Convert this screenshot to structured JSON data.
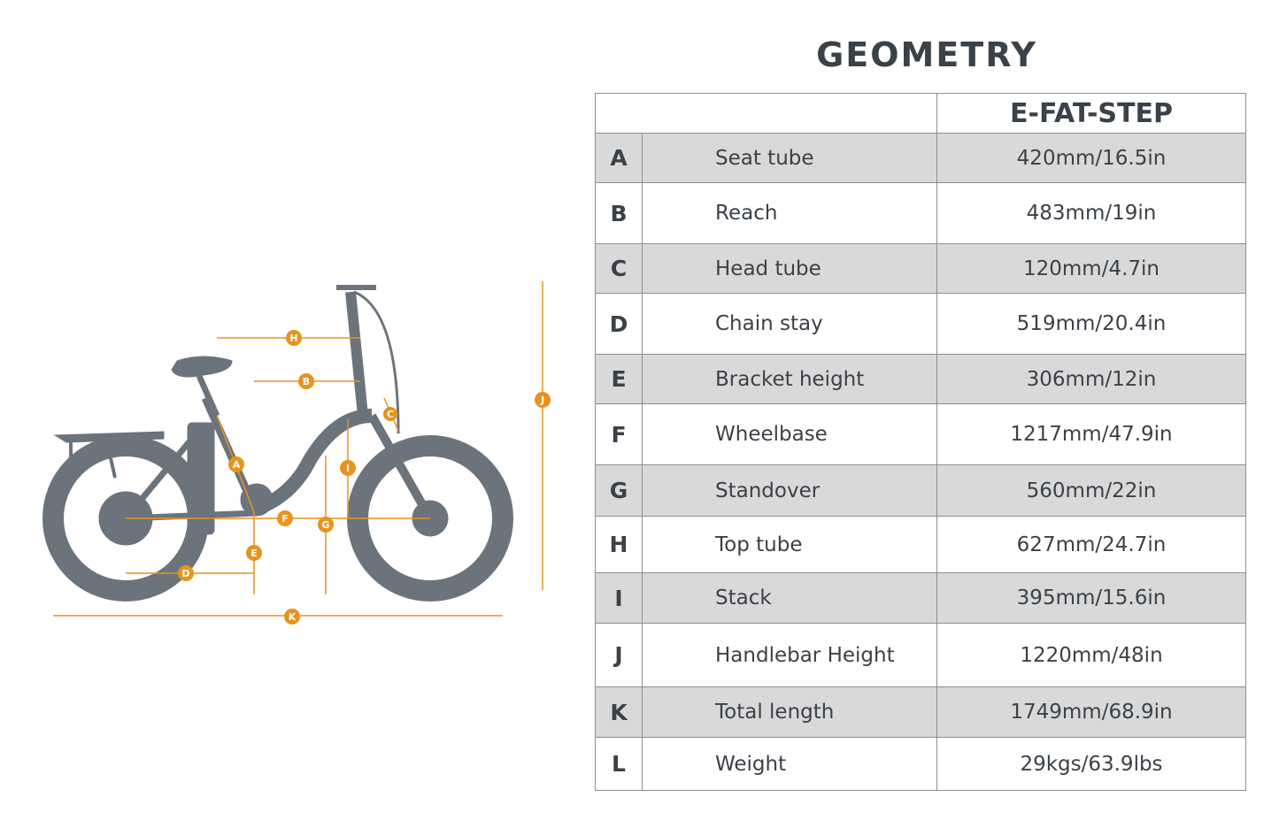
{
  "title": "GEOMETRY",
  "model": "E-FAT-STEP",
  "colors": {
    "accent": "#e8931e",
    "silhouette": "#6b747c",
    "row_shade": "#d9d9d9"
  },
  "rows": [
    {
      "key": "A",
      "name": "Seat tube",
      "value": "420mm/16.5in"
    },
    {
      "key": "B",
      "name": "Reach",
      "value": "483mm/19in"
    },
    {
      "key": "C",
      "name": "Head tube",
      "value": "120mm/4.7in"
    },
    {
      "key": "D",
      "name": "Chain stay",
      "value": "519mm/20.4in"
    },
    {
      "key": "E",
      "name": "Bracket height",
      "value": "306mm/12in"
    },
    {
      "key": "F",
      "name": "Wheelbase",
      "value": "1217mm/47.9in"
    },
    {
      "key": "G",
      "name": "Standover",
      "value": "560mm/22in"
    },
    {
      "key": "H",
      "name": "Top tube",
      "value": "627mm/24.7in"
    },
    {
      "key": "I",
      "name": "Stack",
      "value": "395mm/15.6in"
    },
    {
      "key": "J",
      "name": "Handlebar Height",
      "value": "1220mm/48in"
    },
    {
      "key": "K",
      "name": "Total length",
      "value": "1749mm/68.9in"
    },
    {
      "key": "L",
      "name": "Weight",
      "value": "29kgs/63.9lbs"
    }
  ]
}
